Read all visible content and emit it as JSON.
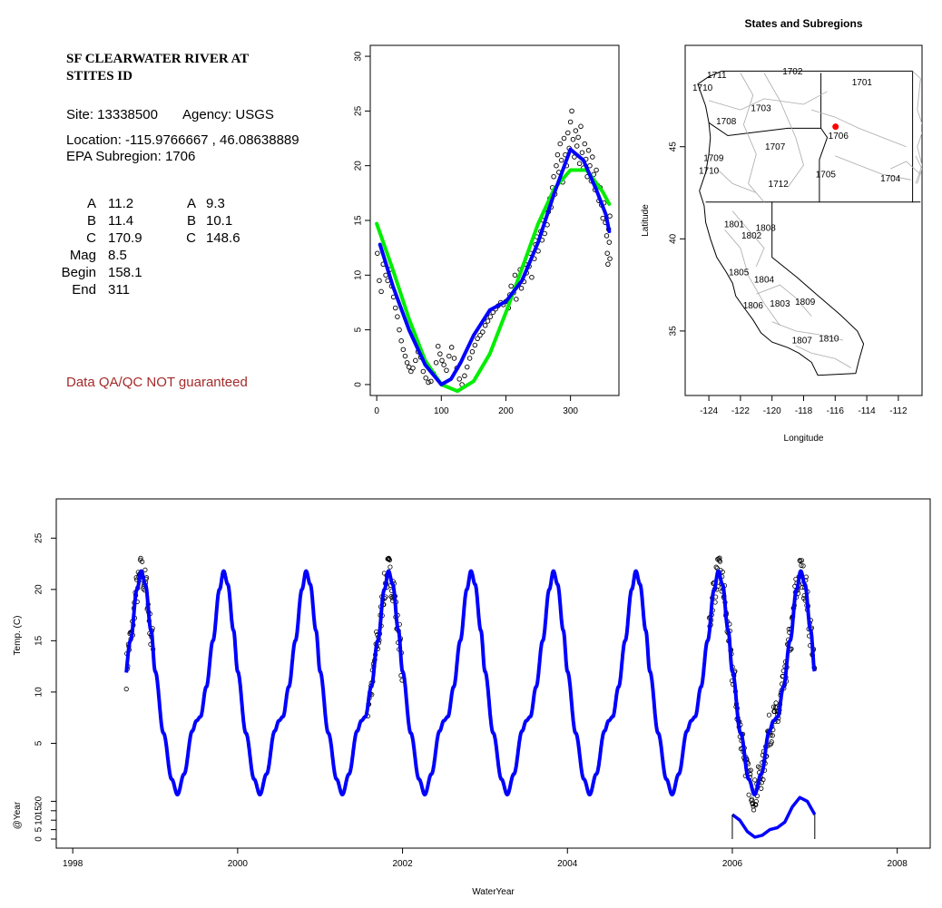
{
  "info": {
    "title_line1": "SF CLEARWATER RIVER AT",
    "title_line2": "STITES ID",
    "site": "Site: 13338500",
    "agency": "Agency: USGS",
    "location": "Location: -115.9766667 , 46.08638889",
    "epa": "EPA Subregion: 1706",
    "params_left": [
      {
        "name": "A",
        "value": "11.2"
      },
      {
        "name": "B",
        "value": "11.4"
      },
      {
        "name": "C",
        "value": "170.9"
      },
      {
        "name": "Mag",
        "value": "8.5"
      },
      {
        "name": "Begin",
        "value": "158.1"
      },
      {
        "name": "End",
        "value": "311"
      }
    ],
    "params_right": [
      {
        "name": "A",
        "value": "9.3"
      },
      {
        "name": "B",
        "value": "10.1"
      },
      {
        "name": "C",
        "value": "148.6"
      }
    ],
    "qa_note": "Data QA/QC NOT guaranteed",
    "qa_color": "#a52a2a"
  },
  "chart_data": [
    {
      "id": "seasonal",
      "type": "scatter",
      "xlim": [
        -10,
        375
      ],
      "ylim": [
        -1,
        31
      ],
      "x_ticks": [
        "0",
        "100",
        "200",
        "300"
      ],
      "y_ticks": [
        "0",
        "5",
        "10",
        "15",
        "20",
        "25",
        "30"
      ],
      "points_color": "#000000",
      "series": [
        {
          "color": "#00ee00",
          "style": "line",
          "x": [
            0,
            25,
            50,
            75,
            100,
            125,
            150,
            175,
            200,
            225,
            250,
            275,
            300,
            325,
            350,
            360
          ],
          "y": [
            14.7,
            10.5,
            6.0,
            2.2,
            0.0,
            -0.6,
            0.3,
            2.8,
            6.6,
            10.6,
            14.7,
            17.9,
            19.6,
            19.6,
            17.6,
            16.5
          ]
        },
        {
          "color": "#0000ff",
          "style": "line",
          "x": [
            5,
            25,
            50,
            75,
            100,
            115,
            130,
            150,
            175,
            200,
            225,
            250,
            275,
            300,
            320,
            340,
            355,
            360
          ],
          "y": [
            12.8,
            9.0,
            5.0,
            1.8,
            0.0,
            0.5,
            2.0,
            4.5,
            6.8,
            7.6,
            9.5,
            13.0,
            17.5,
            21.5,
            20.5,
            17.8,
            15.5,
            14.0
          ]
        }
      ],
      "points": [
        [
          1,
          12.0
        ],
        [
          4,
          9.5
        ],
        [
          7,
          8.5
        ],
        [
          10,
          11.0
        ],
        [
          14,
          10.0
        ],
        [
          17,
          9.5
        ],
        [
          20,
          10.5
        ],
        [
          23,
          9.0
        ],
        [
          26,
          8.0
        ],
        [
          29,
          7.0
        ],
        [
          32,
          6.2
        ],
        [
          35,
          5.0
        ],
        [
          38,
          4.0
        ],
        [
          41,
          3.2
        ],
        [
          44,
          2.6
        ],
        [
          47,
          2.0
        ],
        [
          50,
          1.6
        ],
        [
          53,
          1.2
        ],
        [
          56,
          1.5
        ],
        [
          60,
          2.2
        ],
        [
          64,
          3.0
        ],
        [
          68,
          2.5
        ],
        [
          72,
          1.2
        ],
        [
          76,
          0.6
        ],
        [
          80,
          0.2
        ],
        [
          84,
          0.3
        ],
        [
          88,
          1.0
        ],
        [
          92,
          2.0
        ],
        [
          95,
          3.5
        ],
        [
          98,
          2.8
        ],
        [
          101,
          2.2
        ],
        [
          104,
          1.8
        ],
        [
          108,
          1.3
        ],
        [
          112,
          2.6
        ],
        [
          116,
          3.4
        ],
        [
          120,
          2.4
        ],
        [
          124,
          1.5
        ],
        [
          128,
          0.5
        ],
        [
          132,
          0.0
        ],
        [
          136,
          0.8
        ],
        [
          140,
          1.6
        ],
        [
          144,
          2.4
        ],
        [
          148,
          3.0
        ],
        [
          152,
          3.6
        ],
        [
          156,
          4.2
        ],
        [
          160,
          4.5
        ],
        [
          164,
          4.8
        ],
        [
          168,
          5.4
        ],
        [
          172,
          5.8
        ],
        [
          176,
          6.2
        ],
        [
          180,
          6.6
        ],
        [
          184,
          6.9
        ],
        [
          188,
          7.2
        ],
        [
          192,
          7.5
        ],
        [
          196,
          7.3
        ],
        [
          200,
          7.6
        ],
        [
          204,
          7.0
        ],
        [
          206,
          8.2
        ],
        [
          208,
          9.0
        ],
        [
          212,
          8.4
        ],
        [
          214,
          10.0
        ],
        [
          216,
          7.8
        ],
        [
          220,
          9.2
        ],
        [
          222,
          10.5
        ],
        [
          224,
          8.8
        ],
        [
          228,
          9.4
        ],
        [
          230,
          11.0
        ],
        [
          232,
          10.2
        ],
        [
          236,
          10.8
        ],
        [
          238,
          12.0
        ],
        [
          240,
          9.8
        ],
        [
          244,
          11.5
        ],
        [
          246,
          12.8
        ],
        [
          248,
          13.5
        ],
        [
          250,
          12.2
        ],
        [
          254,
          14.0
        ],
        [
          256,
          13.2
        ],
        [
          258,
          15.0
        ],
        [
          260,
          13.8
        ],
        [
          262,
          16.0
        ],
        [
          264,
          14.6
        ],
        [
          266,
          15.8
        ],
        [
          268,
          17.0
        ],
        [
          270,
          16.2
        ],
        [
          272,
          18.0
        ],
        [
          274,
          19.0
        ],
        [
          276,
          17.4
        ],
        [
          278,
          20.0
        ],
        [
          280,
          21.0
        ],
        [
          282,
          19.4
        ],
        [
          284,
          22.0
        ],
        [
          286,
          20.5
        ],
        [
          288,
          18.5
        ],
        [
          290,
          22.5
        ],
        [
          292,
          21.0
        ],
        [
          294,
          20.0
        ],
        [
          296,
          23.0
        ],
        [
          298,
          21.6
        ],
        [
          300,
          24.0
        ],
        [
          302,
          25.0
        ],
        [
          304,
          22.4
        ],
        [
          306,
          20.8
        ],
        [
          308,
          23.2
        ],
        [
          310,
          21.8
        ],
        [
          312,
          22.6
        ],
        [
          314,
          20.2
        ],
        [
          316,
          23.6
        ],
        [
          318,
          21.2
        ],
        [
          320,
          19.8
        ],
        [
          322,
          22.0
        ],
        [
          324,
          20.6
        ],
        [
          326,
          19.0
        ],
        [
          328,
          21.4
        ],
        [
          330,
          20.0
        ],
        [
          332,
          18.6
        ],
        [
          334,
          20.8
        ],
        [
          336,
          19.2
        ],
        [
          338,
          17.8
        ],
        [
          340,
          19.6
        ],
        [
          342,
          18.2
        ],
        [
          344,
          16.8
        ],
        [
          346,
          18.0
        ],
        [
          348,
          16.4
        ],
        [
          350,
          15.2
        ],
        [
          352,
          16.6
        ],
        [
          354,
          14.8
        ],
        [
          356,
          13.6
        ],
        [
          357,
          12.0
        ],
        [
          358,
          11.0
        ],
        [
          359,
          14.2
        ],
        [
          360,
          13.0
        ],
        [
          361,
          11.5
        ],
        [
          361,
          15.4
        ]
      ]
    },
    {
      "id": "map",
      "type": "map",
      "title": "States and Subregions",
      "xlabel": "Longitude",
      "ylabel": "Latitude",
      "xlim": [
        -125.5,
        -110.5
      ],
      "ylim": [
        31.5,
        50.5
      ],
      "x_ticks": [
        -124,
        -122,
        -120,
        -118,
        -116,
        -114,
        -112
      ],
      "y_ticks": [
        35,
        40,
        45
      ],
      "site": {
        "lon": -115.9766667,
        "lat": 46.08638889,
        "color": "#ff0000"
      },
      "regions": [
        {
          "label": "1701",
          "lon": -114.3,
          "lat": 48.5
        },
        {
          "label": "1702",
          "lon": -118.7,
          "lat": 49.1
        },
        {
          "label": "1703",
          "lon": -120.7,
          "lat": 47.1
        },
        {
          "label": "1704",
          "lon": -112.5,
          "lat": 43.3
        },
        {
          "label": "1705",
          "lon": -116.6,
          "lat": 43.5
        },
        {
          "label": "1706",
          "lon": -115.8,
          "lat": 45.6
        },
        {
          "label": "1707",
          "lon": -119.8,
          "lat": 45.0
        },
        {
          "label": "1708",
          "lon": -122.9,
          "lat": 46.4
        },
        {
          "label": "1709",
          "lon": -123.7,
          "lat": 44.4
        },
        {
          "label": "1710",
          "lon": -124.4,
          "lat": 48.2
        },
        {
          "label": "1710",
          "lon": -124.0,
          "lat": 43.7
        },
        {
          "label": "1711",
          "lon": -123.5,
          "lat": 48.9
        },
        {
          "label": "1712",
          "lon": -119.6,
          "lat": 43.0
        },
        {
          "label": "1801",
          "lon": -122.4,
          "lat": 40.8
        },
        {
          "label": "1802",
          "lon": -121.3,
          "lat": 40.2
        },
        {
          "label": "1803",
          "lon": -119.5,
          "lat": 36.5
        },
        {
          "label": "1804",
          "lon": -120.5,
          "lat": 37.8
        },
        {
          "label": "1805",
          "lon": -122.1,
          "lat": 38.2
        },
        {
          "label": "1806",
          "lon": -121.2,
          "lat": 36.4
        },
        {
          "label": "1807",
          "lon": -118.1,
          "lat": 34.5
        },
        {
          "label": "1808",
          "lon": -120.4,
          "lat": 40.6
        },
        {
          "label": "1809",
          "lon": -117.9,
          "lat": 36.6
        },
        {
          "label": "1810",
          "lon": -116.4,
          "lat": 34.6
        }
      ]
    },
    {
      "id": "timeseries",
      "type": "line",
      "ylabel": "Temp. (C)",
      "xlabel": "WaterYear",
      "xlim": [
        1997.8,
        2008.4
      ],
      "ylim": [
        -5,
        30
      ],
      "x_ticks": [
        "1998",
        "2000",
        "2002",
        "2004",
        "2006",
        "2008"
      ],
      "y_ticks": [
        "5",
        "10",
        "15",
        "20",
        "25"
      ],
      "y2_label": "@Year",
      "y2_ticks": [
        "0",
        "10",
        "20"
      ],
      "y2_ticks_minor": [
        "5",
        "15"
      ],
      "model": {
        "color": "#0000ff",
        "min": 0.0,
        "max": 21.8,
        "shoulder": 7.6,
        "peak_phase": 0.83
      },
      "inset": {
        "color": "#0000ff",
        "x_start": 2006.0,
        "x_end": 2007.0,
        "y": [
          13.0,
          10.0,
          4.0,
          1.0,
          2.0,
          5.0,
          6.0,
          9.0,
          17.0,
          22.0,
          20.0,
          13.0
        ]
      },
      "obs_periods": [
        {
          "start": 1998.65,
          "end": 1998.98
        },
        {
          "start": 2001.58,
          "end": 2002.0
        },
        {
          "start": 2005.72,
          "end": 2007.0
        }
      ]
    }
  ]
}
